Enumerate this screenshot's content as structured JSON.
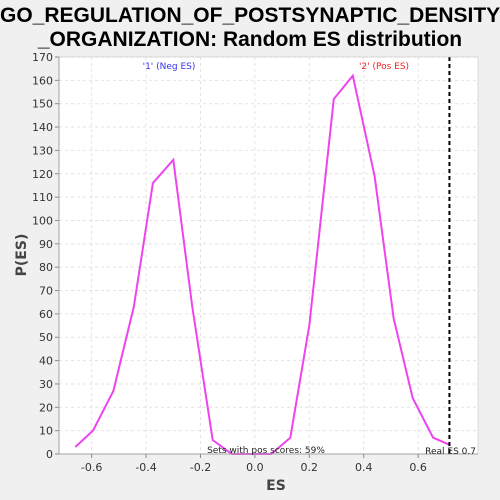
{
  "chart_data": {
    "type": "line",
    "title_line1": "GO_REGULATION_OF_POSTSYNAPTIC_DENSITY",
    "title_line2": "_ORGANIZATION: Random ES distribution",
    "xlabel": "ES",
    "ylabel": "P(ES)",
    "xlim": [
      -0.72,
      0.82
    ],
    "ylim": [
      0,
      170
    ],
    "x_ticks": [
      -0.6,
      -0.4,
      -0.2,
      0.0,
      0.2,
      0.4,
      0.6
    ],
    "x_tick_labels": [
      "-0.6",
      "-0.4",
      "-0.2",
      "0.0",
      "0.2",
      "0.4",
      "0.6"
    ],
    "y_ticks": [
      0,
      10,
      20,
      30,
      40,
      50,
      60,
      70,
      80,
      90,
      100,
      110,
      120,
      130,
      140,
      150,
      160,
      170
    ],
    "grid": true,
    "series": [
      {
        "color": "#ee44ee",
        "x": [
          -0.66,
          -0.595,
          -0.52,
          -0.445,
          -0.375,
          -0.3,
          -0.23,
          -0.155,
          -0.085,
          -0.015,
          0.06,
          0.13,
          0.2,
          0.29,
          0.36,
          0.44,
          0.51,
          0.58,
          0.655,
          0.715
        ],
        "y": [
          3,
          10,
          27,
          63,
          116,
          126,
          63,
          6,
          0,
          0,
          0,
          7,
          55,
          152,
          162,
          119,
          58,
          24,
          7,
          4
        ]
      }
    ],
    "real_es": 0.715,
    "annotations": {
      "neg_label": "'1' (Neg ES)",
      "neg_color": "#3333ee",
      "pos_label": "'2' (Pos ES)",
      "pos_color": "#ee2222",
      "pos_scores": "Sets with pos scores: 59%",
      "real_es_label": "Real ES 0.7"
    }
  }
}
